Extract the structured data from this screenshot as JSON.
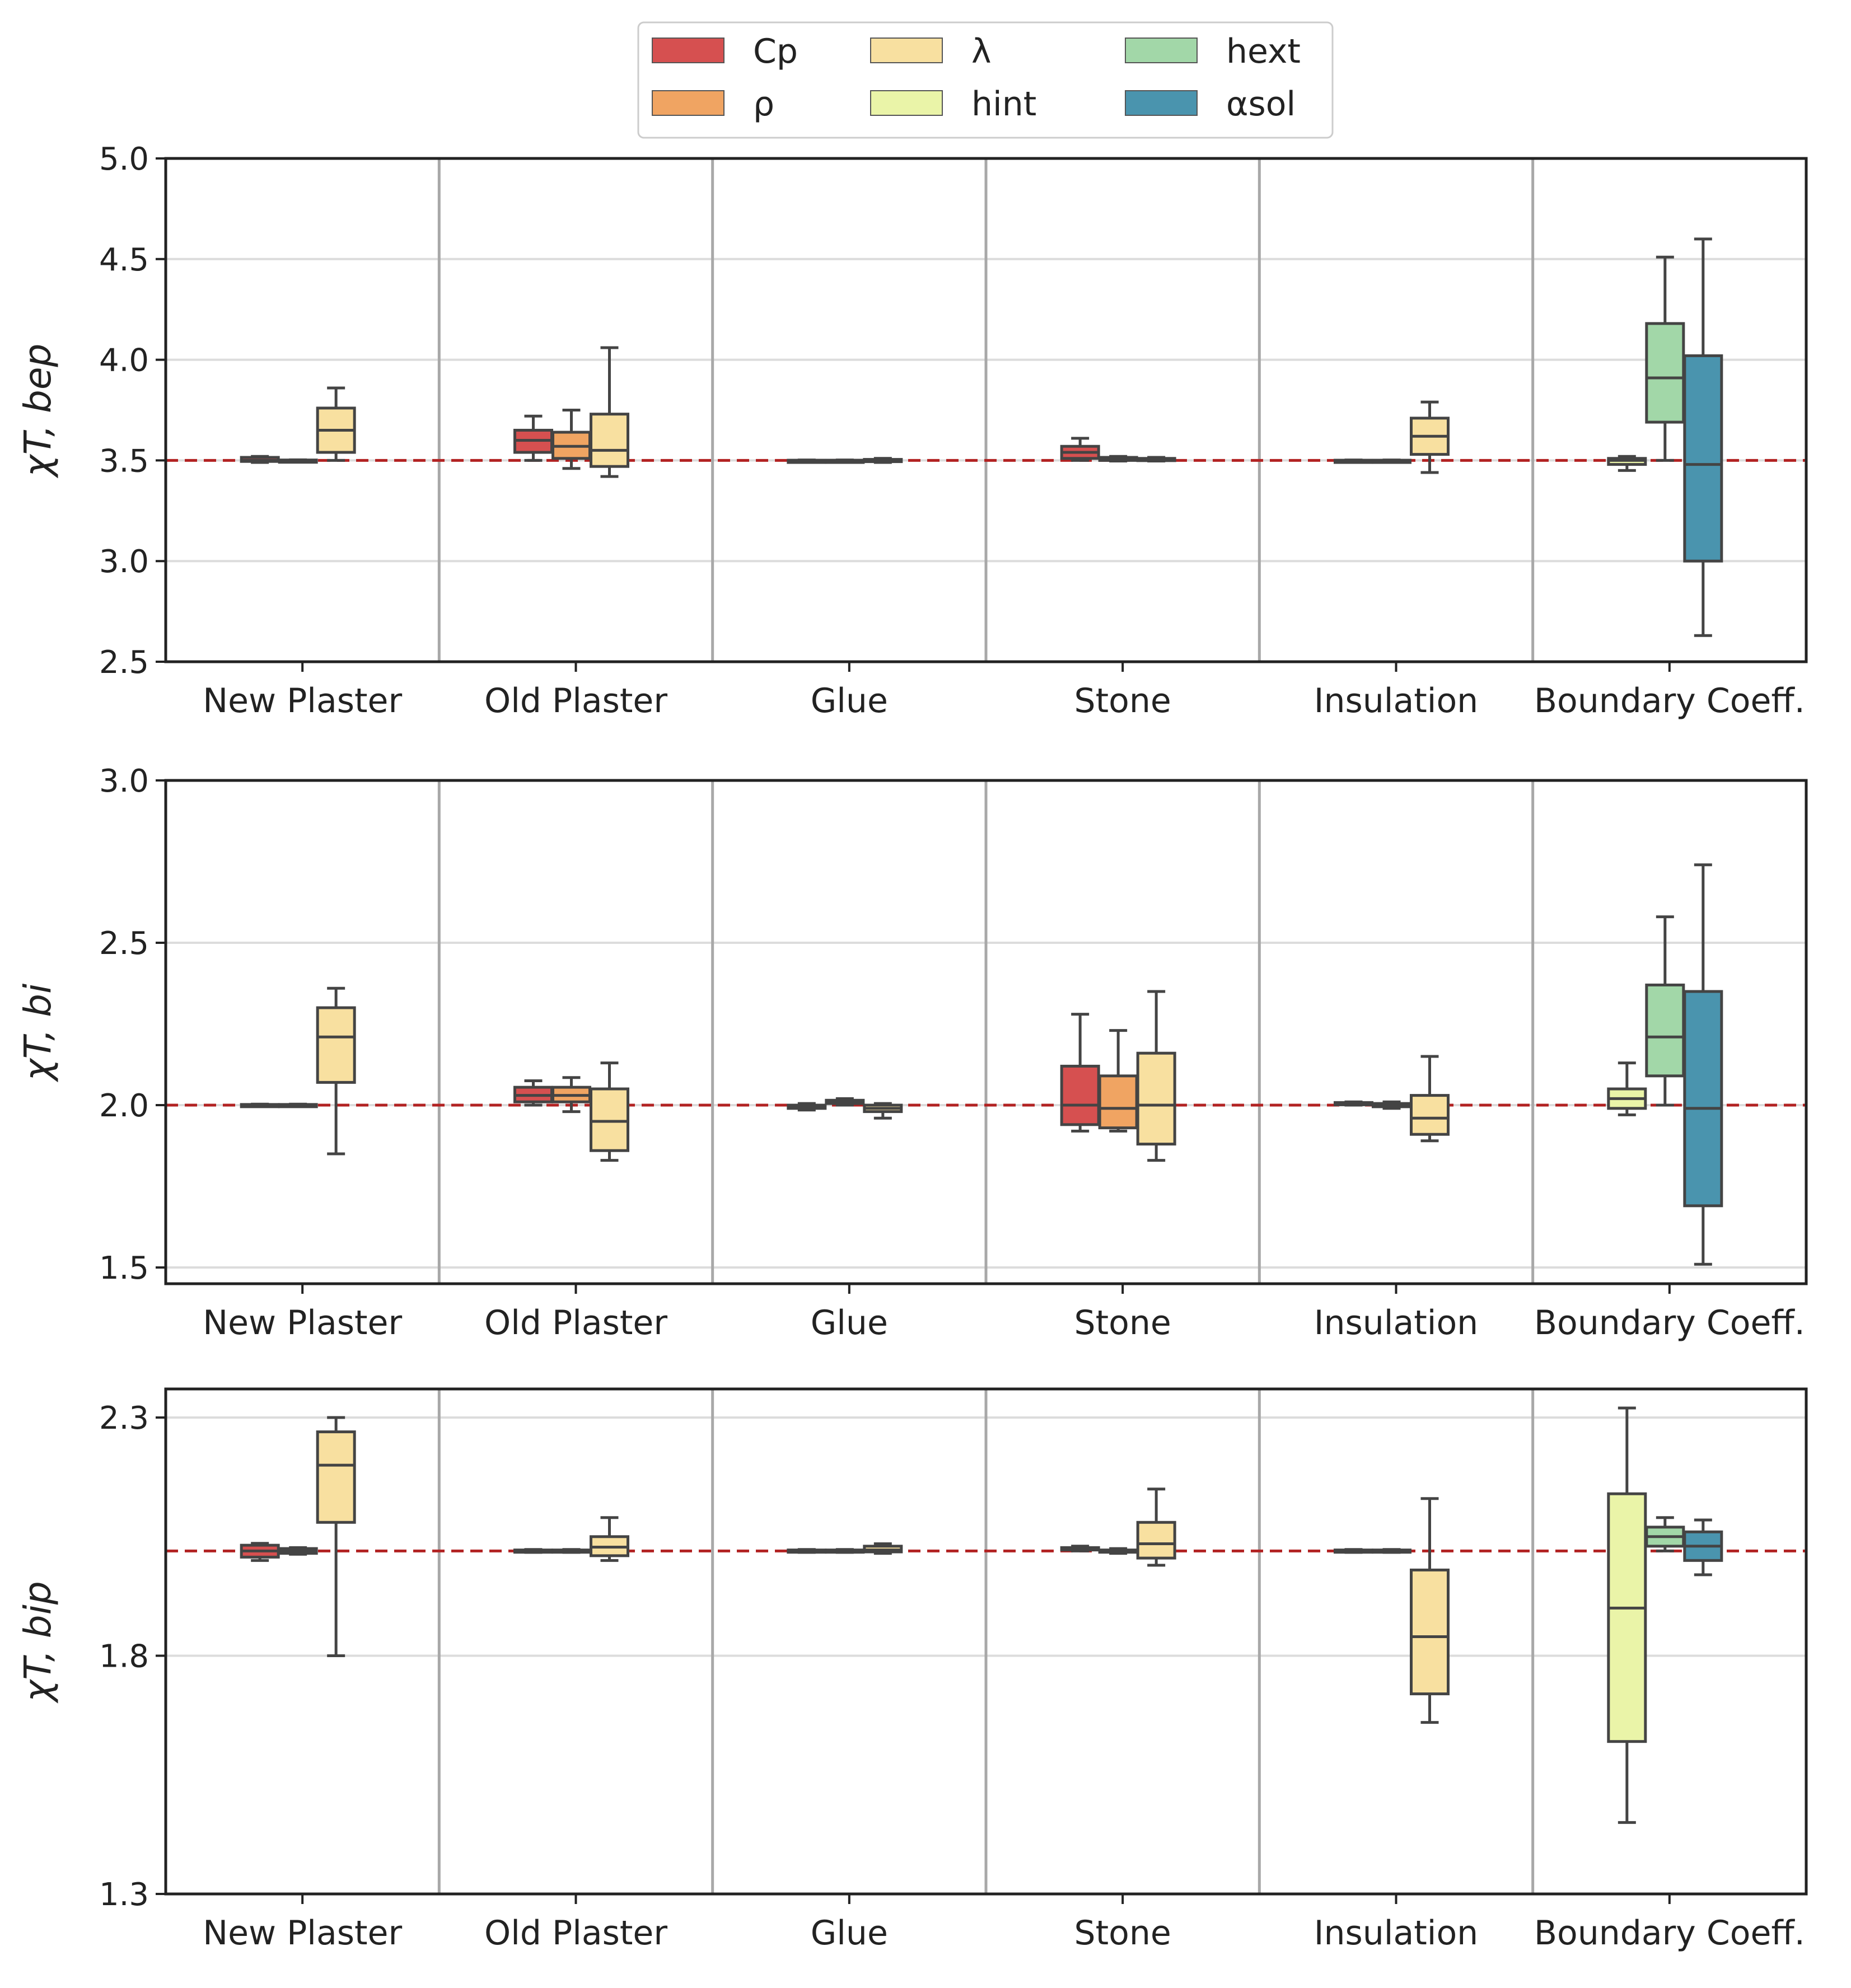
{
  "legend": {
    "items": [
      {
        "key": "cp",
        "label": "Cp",
        "color": "#d65050"
      },
      {
        "key": "rho",
        "label": "ρ",
        "color": "#f0a462"
      },
      {
        "key": "lambda",
        "label": "λ",
        "color": "#f8e0a0"
      },
      {
        "key": "hint",
        "label": "hint",
        "color": "#eaf4a8"
      },
      {
        "key": "hext",
        "label": "hext",
        "color": "#a2d7a8"
      },
      {
        "key": "asol",
        "label": "αsol",
        "color": "#4a94ae"
      }
    ]
  },
  "chart_data": [
    {
      "type": "box",
      "ylabel": "χT, bep",
      "ylim": [
        2.5,
        5.0
      ],
      "yticks": [
        "2.5",
        "3.0",
        "3.5",
        "4.0",
        "4.5",
        "5.0"
      ],
      "reference_line": 3.5,
      "categories": [
        "New Plaster",
        "Old Plaster",
        "Glue",
        "Stone",
        "Insulation",
        "Boundary Coeff."
      ],
      "groups": [
        {
          "category": "New Plaster",
          "boxes": [
            {
              "param": "cp",
              "min": 3.49,
              "q1": 3.495,
              "median": 3.5,
              "q3": 3.515,
              "max": 3.52
            },
            {
              "param": "rho",
              "min": 3.497,
              "q1": 3.498,
              "median": 3.5,
              "q3": 3.502,
              "max": 3.503
            },
            {
              "param": "lambda",
              "min": 3.5,
              "q1": 3.54,
              "median": 3.65,
              "q3": 3.76,
              "max": 3.86
            }
          ]
        },
        {
          "category": "Old Plaster",
          "boxes": [
            {
              "param": "cp",
              "min": 3.5,
              "q1": 3.54,
              "median": 3.6,
              "q3": 3.65,
              "max": 3.72
            },
            {
              "param": "rho",
              "min": 3.46,
              "q1": 3.51,
              "median": 3.57,
              "q3": 3.64,
              "max": 3.75
            },
            {
              "param": "lambda",
              "min": 3.42,
              "q1": 3.47,
              "median": 3.55,
              "q3": 3.73,
              "max": 4.06
            }
          ]
        },
        {
          "category": "Glue",
          "boxes": [
            {
              "param": "cp",
              "min": 3.498,
              "q1": 3.499,
              "median": 3.5,
              "q3": 3.501,
              "max": 3.502
            },
            {
              "param": "rho",
              "min": 3.498,
              "q1": 3.499,
              "median": 3.5,
              "q3": 3.501,
              "max": 3.502
            },
            {
              "param": "lambda",
              "min": 3.49,
              "q1": 3.495,
              "median": 3.5,
              "q3": 3.505,
              "max": 3.51
            }
          ]
        },
        {
          "category": "Stone",
          "boxes": [
            {
              "param": "cp",
              "min": 3.5,
              "q1": 3.51,
              "median": 3.54,
              "q3": 3.57,
              "max": 3.61
            },
            {
              "param": "rho",
              "min": 3.497,
              "q1": 3.5,
              "median": 3.51,
              "q3": 3.515,
              "max": 3.52
            },
            {
              "param": "lambda",
              "min": 3.497,
              "q1": 3.5,
              "median": 3.505,
              "q3": 3.51,
              "max": 3.515
            }
          ]
        },
        {
          "category": "Insulation",
          "boxes": [
            {
              "param": "cp",
              "min": 3.498,
              "q1": 3.499,
              "median": 3.5,
              "q3": 3.501,
              "max": 3.502
            },
            {
              "param": "rho",
              "min": 3.498,
              "q1": 3.499,
              "median": 3.5,
              "q3": 3.501,
              "max": 3.502
            },
            {
              "param": "lambda",
              "min": 3.44,
              "q1": 3.53,
              "median": 3.62,
              "q3": 3.71,
              "max": 3.79
            }
          ]
        },
        {
          "category": "Boundary Coeff.",
          "boxes": [
            {
              "param": "hint",
              "min": 3.45,
              "q1": 3.48,
              "median": 3.5,
              "q3": 3.51,
              "max": 3.52
            },
            {
              "param": "hext",
              "min": 3.5,
              "q1": 3.69,
              "median": 3.91,
              "q3": 4.18,
              "max": 4.51
            },
            {
              "param": "asol",
              "min": 2.63,
              "q1": 3.0,
              "median": 3.48,
              "q3": 4.02,
              "max": 4.6
            }
          ]
        }
      ]
    },
    {
      "type": "box",
      "ylabel": "χT, bi",
      "ylim": [
        1.45,
        3.0
      ],
      "yticks": [
        "1.5",
        "2.0",
        "2.5",
        "3.0"
      ],
      "reference_line": 2.0,
      "categories": [
        "New Plaster",
        "Old Plaster",
        "Glue",
        "Stone",
        "Insulation",
        "Boundary Coeff."
      ],
      "groups": [
        {
          "category": "New Plaster",
          "boxes": [
            {
              "param": "cp",
              "min": 1.997,
              "q1": 1.998,
              "median": 2.0,
              "q3": 2.002,
              "max": 2.003
            },
            {
              "param": "rho",
              "min": 1.997,
              "q1": 1.998,
              "median": 2.0,
              "q3": 2.002,
              "max": 2.003
            },
            {
              "param": "lambda",
              "min": 1.85,
              "q1": 2.07,
              "median": 2.21,
              "q3": 2.3,
              "max": 2.36
            }
          ]
        },
        {
          "category": "Old Plaster",
          "boxes": [
            {
              "param": "cp",
              "min": 2.0,
              "q1": 2.01,
              "median": 2.03,
              "q3": 2.055,
              "max": 2.075
            },
            {
              "param": "rho",
              "min": 1.98,
              "q1": 2.01,
              "median": 2.03,
              "q3": 2.055,
              "max": 2.085
            },
            {
              "param": "lambda",
              "min": 1.83,
              "q1": 1.86,
              "median": 1.95,
              "q3": 2.05,
              "max": 2.13
            }
          ]
        },
        {
          "category": "Glue",
          "boxes": [
            {
              "param": "cp",
              "min": 1.985,
              "q1": 1.99,
              "median": 1.995,
              "q3": 2.0,
              "max": 2.005
            },
            {
              "param": "rho",
              "min": 2.0,
              "q1": 2.005,
              "median": 2.01,
              "q3": 2.015,
              "max": 2.02
            },
            {
              "param": "lambda",
              "min": 1.96,
              "q1": 1.98,
              "median": 1.99,
              "q3": 2.0,
              "max": 2.005
            }
          ]
        },
        {
          "category": "Stone",
          "boxes": [
            {
              "param": "cp",
              "min": 1.92,
              "q1": 1.94,
              "median": 2.0,
              "q3": 2.12,
              "max": 2.28
            },
            {
              "param": "rho",
              "min": 1.92,
              "q1": 1.93,
              "median": 1.99,
              "q3": 2.09,
              "max": 2.23
            },
            {
              "param": "lambda",
              "min": 1.83,
              "q1": 1.88,
              "median": 2.0,
              "q3": 2.16,
              "max": 2.35
            }
          ]
        },
        {
          "category": "Insulation",
          "boxes": [
            {
              "param": "cp",
              "min": 2.0,
              "q1": 2.002,
              "median": 2.005,
              "q3": 2.008,
              "max": 2.01
            },
            {
              "param": "rho",
              "min": 1.99,
              "q1": 1.995,
              "median": 2.0,
              "q3": 2.005,
              "max": 2.01
            },
            {
              "param": "lambda",
              "min": 1.89,
              "q1": 1.91,
              "median": 1.96,
              "q3": 2.03,
              "max": 2.15
            }
          ]
        },
        {
          "category": "Boundary Coeff.",
          "boxes": [
            {
              "param": "hint",
              "min": 1.97,
              "q1": 1.99,
              "median": 2.02,
              "q3": 2.05,
              "max": 2.13
            },
            {
              "param": "hext",
              "min": 2.0,
              "q1": 2.09,
              "median": 2.21,
              "q3": 2.37,
              "max": 2.58
            },
            {
              "param": "asol",
              "min": 1.51,
              "q1": 1.69,
              "median": 1.99,
              "q3": 2.35,
              "max": 2.74
            }
          ]
        }
      ]
    },
    {
      "type": "box",
      "ylabel": "χT, bip",
      "ylim": [
        1.3,
        2.36
      ],
      "yticks": [
        "1.3",
        "1.8",
        "2.3"
      ],
      "reference_line": 2.02,
      "categories": [
        "New Plaster",
        "Old Plaster",
        "Glue",
        "Stone",
        "Insulation",
        "Boundary Coeff."
      ],
      "groups": [
        {
          "category": "New Plaster",
          "boxes": [
            {
              "param": "cp",
              "min": 2.0,
              "q1": 2.007,
              "median": 2.02,
              "q3": 2.032,
              "max": 2.036
            },
            {
              "param": "rho",
              "min": 2.013,
              "q1": 2.015,
              "median": 2.02,
              "q3": 2.025,
              "max": 2.027
            },
            {
              "param": "lambda",
              "min": 1.8,
              "q1": 2.08,
              "median": 2.2,
              "q3": 2.27,
              "max": 2.3
            }
          ]
        },
        {
          "category": "Old Plaster",
          "boxes": [
            {
              "param": "cp",
              "min": 2.017,
              "q1": 2.018,
              "median": 2.02,
              "q3": 2.022,
              "max": 2.023
            },
            {
              "param": "rho",
              "min": 2.017,
              "q1": 2.018,
              "median": 2.02,
              "q3": 2.022,
              "max": 2.023
            },
            {
              "param": "lambda",
              "min": 2.0,
              "q1": 2.01,
              "median": 2.028,
              "q3": 2.05,
              "max": 2.09
            }
          ]
        },
        {
          "category": "Glue",
          "boxes": [
            {
              "param": "cp",
              "min": 2.017,
              "q1": 2.018,
              "median": 2.02,
              "q3": 2.022,
              "max": 2.023
            },
            {
              "param": "rho",
              "min": 2.017,
              "q1": 2.018,
              "median": 2.02,
              "q3": 2.022,
              "max": 2.023
            },
            {
              "param": "lambda",
              "min": 2.015,
              "q1": 2.018,
              "median": 2.022,
              "q3": 2.03,
              "max": 2.035
            }
          ]
        },
        {
          "category": "Stone",
          "boxes": [
            {
              "param": "cp",
              "min": 2.02,
              "q1": 2.022,
              "median": 2.025,
              "q3": 2.027,
              "max": 2.03
            },
            {
              "param": "rho",
              "min": 2.015,
              "q1": 2.018,
              "median": 2.02,
              "q3": 2.022,
              "max": 2.025
            },
            {
              "param": "lambda",
              "min": 1.99,
              "q1": 2.005,
              "median": 2.035,
              "q3": 2.08,
              "max": 2.15
            }
          ]
        },
        {
          "category": "Insulation",
          "boxes": [
            {
              "param": "cp",
              "min": 2.017,
              "q1": 2.018,
              "median": 2.02,
              "q3": 2.022,
              "max": 2.023
            },
            {
              "param": "rho",
              "min": 2.017,
              "q1": 2.018,
              "median": 2.02,
              "q3": 2.022,
              "max": 2.023
            },
            {
              "param": "lambda",
              "min": 1.66,
              "q1": 1.72,
              "median": 1.84,
              "q3": 1.98,
              "max": 2.13
            }
          ]
        },
        {
          "category": "Boundary Coeff.",
          "boxes": [
            {
              "param": "hint",
              "min": 1.45,
              "q1": 1.62,
              "median": 1.9,
              "q3": 2.14,
              "max": 2.32
            },
            {
              "param": "hext",
              "min": 2.02,
              "q1": 2.03,
              "median": 2.05,
              "q3": 2.07,
              "max": 2.09
            },
            {
              "param": "asol",
              "min": 1.97,
              "q1": 2.0,
              "median": 2.03,
              "q3": 2.06,
              "max": 2.085
            }
          ]
        }
      ]
    }
  ]
}
